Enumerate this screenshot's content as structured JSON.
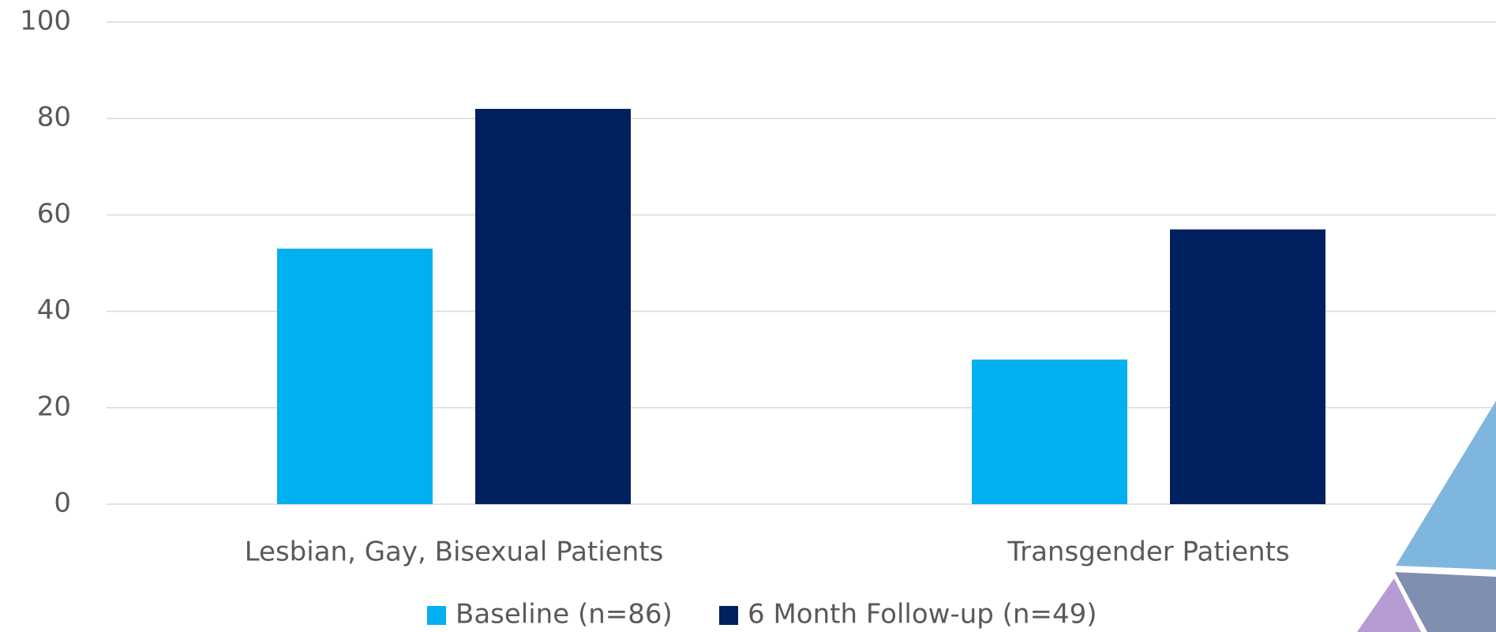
{
  "chart_data": {
    "type": "bar",
    "categories": [
      "Lesbian, Gay, Bisexual Patients",
      "Transgender Patients"
    ],
    "series": [
      {
        "name": "Baseline (n=86)",
        "color": "#00b0f0",
        "values": [
          53,
          30
        ]
      },
      {
        "name": "6 Month Follow-up (n=49)",
        "color": "#002060",
        "values": [
          82,
          57
        ]
      }
    ],
    "ylim": [
      0,
      100
    ],
    "yticks": [
      0,
      20,
      40,
      60,
      80,
      100
    ],
    "grid": true,
    "legend": "bottom"
  }
}
